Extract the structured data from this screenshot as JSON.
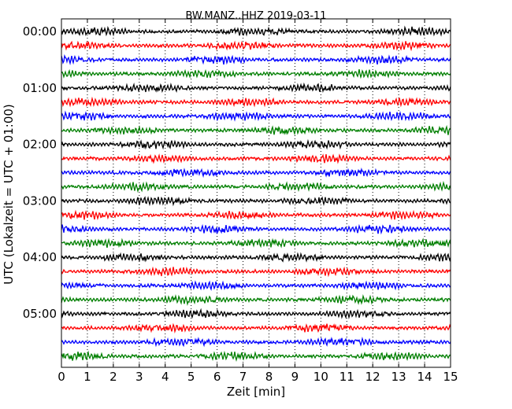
{
  "chart_data": {
    "type": "line",
    "title": "BW.MANZ..HHZ 2019-03-11",
    "xlabel": "Zeit  [min]",
    "ylabel": "UTC (Lokalzeit = UTC + 01:00)",
    "xlim": [
      0,
      15
    ],
    "x_ticks": [
      "0",
      "1",
      "2",
      "3",
      "4",
      "5",
      "6",
      "7",
      "8",
      "9",
      "10",
      "11",
      "12",
      "13",
      "14",
      "15"
    ],
    "y_ticks": [
      "00:00",
      "01:00",
      "02:00",
      "03:00",
      "04:00",
      "05:00"
    ],
    "grid": "vertical dotted",
    "trace_colors": [
      "#000000",
      "#ff0000",
      "#0000ff",
      "#007f00"
    ],
    "trace_interval_minutes": 15,
    "trace_count": 24
  }
}
